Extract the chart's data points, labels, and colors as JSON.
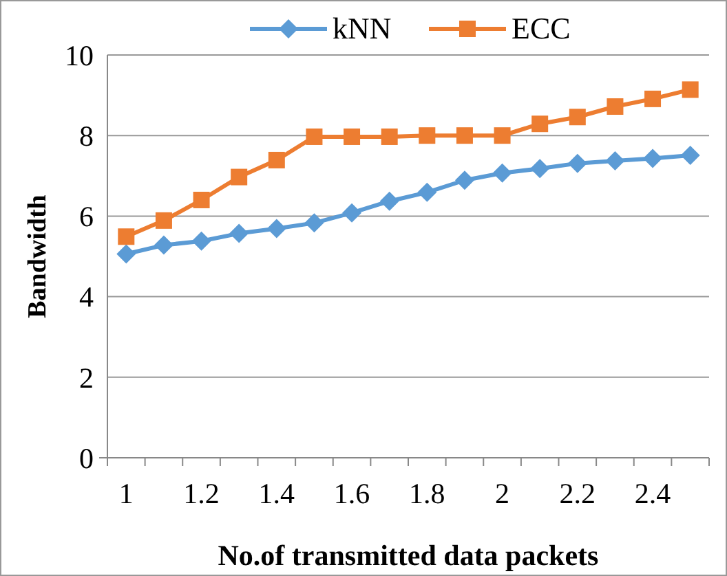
{
  "chart_data": {
    "type": "line",
    "xlabel": "No.of transmitted data packets",
    "ylabel": "Bandwidth",
    "categories": [
      "1",
      null,
      "1.2",
      null,
      "1.4",
      null,
      "1.6",
      null,
      "1.8",
      null,
      "2",
      null,
      "2.2",
      null,
      "2.4",
      null
    ],
    "series": [
      {
        "name": "kNN",
        "color": "#5b9bd5",
        "marker": "diamond",
        "values": [
          5.06,
          5.28,
          5.38,
          5.57,
          5.69,
          5.83,
          6.08,
          6.37,
          6.59,
          6.89,
          7.07,
          7.18,
          7.31,
          7.37,
          7.43,
          7.51
        ]
      },
      {
        "name": "ECC",
        "color": "#ed7d31",
        "marker": "square",
        "values": [
          5.49,
          5.89,
          6.4,
          6.97,
          7.39,
          7.97,
          7.97,
          7.97,
          8.0,
          8.0,
          8.0,
          8.29,
          8.46,
          8.72,
          8.91,
          9.14
        ]
      }
    ],
    "ylim": [
      0,
      10
    ],
    "yticks": [
      0,
      2,
      4,
      6,
      8,
      10
    ],
    "grid": "y",
    "legend": "top"
  }
}
